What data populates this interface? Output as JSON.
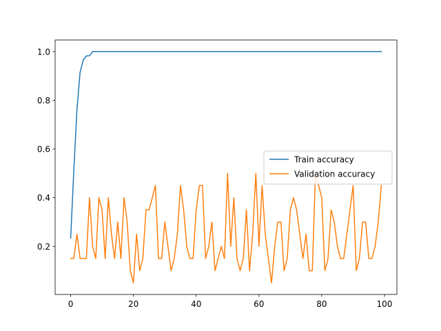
{
  "chart_data": {
    "type": "line",
    "title": "",
    "xlabel": "",
    "ylabel": "",
    "xlim": [
      -4.95,
      103.95
    ],
    "ylim": [
      0.0025,
      1.0475
    ],
    "xticks": [
      0,
      20,
      40,
      60,
      80,
      100
    ],
    "yticks": [
      0.2,
      0.4,
      0.6,
      0.8,
      1.0
    ],
    "xtick_labels": [
      "0",
      "20",
      "40",
      "60",
      "80",
      "100"
    ],
    "ytick_labels": [
      "0.2",
      "0.4",
      "0.6",
      "0.8",
      "1.0"
    ],
    "grid": false,
    "legend_position": "center-right",
    "x": [
      0,
      1,
      2,
      3,
      4,
      5,
      6,
      7,
      8,
      9,
      10,
      11,
      12,
      13,
      14,
      15,
      16,
      17,
      18,
      19,
      20,
      21,
      22,
      23,
      24,
      25,
      26,
      27,
      28,
      29,
      30,
      31,
      32,
      33,
      34,
      35,
      36,
      37,
      38,
      39,
      40,
      41,
      42,
      43,
      44,
      45,
      46,
      47,
      48,
      49,
      50,
      51,
      52,
      53,
      54,
      55,
      56,
      57,
      58,
      59,
      60,
      61,
      62,
      63,
      64,
      65,
      66,
      67,
      68,
      69,
      70,
      71,
      72,
      73,
      74,
      75,
      76,
      77,
      78,
      79,
      80,
      81,
      82,
      83,
      84,
      85,
      86,
      87,
      88,
      89,
      90,
      91,
      92,
      93,
      94,
      95,
      96,
      97,
      98,
      99
    ],
    "series": [
      {
        "name": "Train accuracy",
        "color": "#1f77b4",
        "values": [
          0.234,
          0.51,
          0.76,
          0.915,
          0.965,
          0.982,
          0.983,
          1.0,
          1.0,
          1.0,
          1.0,
          1.0,
          1.0,
          1.0,
          1.0,
          1.0,
          1.0,
          1.0,
          1.0,
          1.0,
          1.0,
          1.0,
          1.0,
          1.0,
          1.0,
          1.0,
          1.0,
          1.0,
          1.0,
          1.0,
          1.0,
          1.0,
          1.0,
          1.0,
          1.0,
          1.0,
          1.0,
          1.0,
          1.0,
          1.0,
          1.0,
          1.0,
          1.0,
          1.0,
          1.0,
          1.0,
          1.0,
          1.0,
          1.0,
          1.0,
          1.0,
          1.0,
          1.0,
          1.0,
          1.0,
          1.0,
          1.0,
          1.0,
          1.0,
          1.0,
          1.0,
          1.0,
          1.0,
          1.0,
          1.0,
          1.0,
          1.0,
          1.0,
          1.0,
          1.0,
          1.0,
          1.0,
          1.0,
          1.0,
          1.0,
          1.0,
          1.0,
          1.0,
          1.0,
          1.0,
          1.0,
          1.0,
          1.0,
          1.0,
          1.0,
          1.0,
          1.0,
          1.0,
          1.0,
          1.0,
          1.0,
          1.0,
          1.0,
          1.0,
          1.0,
          1.0,
          1.0,
          1.0,
          1.0,
          1.0
        ]
      },
      {
        "name": "Validation accuracy",
        "color": "#ff7f0e",
        "values": [
          0.15,
          0.15,
          0.25,
          0.15,
          0.15,
          0.15,
          0.4,
          0.2,
          0.15,
          0.4,
          0.35,
          0.15,
          0.4,
          0.25,
          0.15,
          0.3,
          0.15,
          0.4,
          0.3,
          0.1,
          0.05,
          0.25,
          0.1,
          0.15,
          0.35,
          0.35,
          0.4,
          0.45,
          0.15,
          0.15,
          0.3,
          0.2,
          0.1,
          0.15,
          0.25,
          0.45,
          0.35,
          0.2,
          0.15,
          0.15,
          0.35,
          0.45,
          0.45,
          0.15,
          0.2,
          0.3,
          0.1,
          0.15,
          0.2,
          0.15,
          0.5,
          0.2,
          0.4,
          0.15,
          0.1,
          0.15,
          0.35,
          0.1,
          0.25,
          0.5,
          0.2,
          0.45,
          0.25,
          0.15,
          0.05,
          0.2,
          0.3,
          0.3,
          0.1,
          0.15,
          0.35,
          0.4,
          0.35,
          0.25,
          0.15,
          0.25,
          0.1,
          0.1,
          0.5,
          0.45,
          0.4,
          0.1,
          0.15,
          0.35,
          0.3,
          0.2,
          0.15,
          0.15,
          0.25,
          0.35,
          0.45,
          0.1,
          0.15,
          0.3,
          0.3,
          0.15,
          0.15,
          0.2,
          0.3,
          0.45
        ]
      }
    ]
  }
}
